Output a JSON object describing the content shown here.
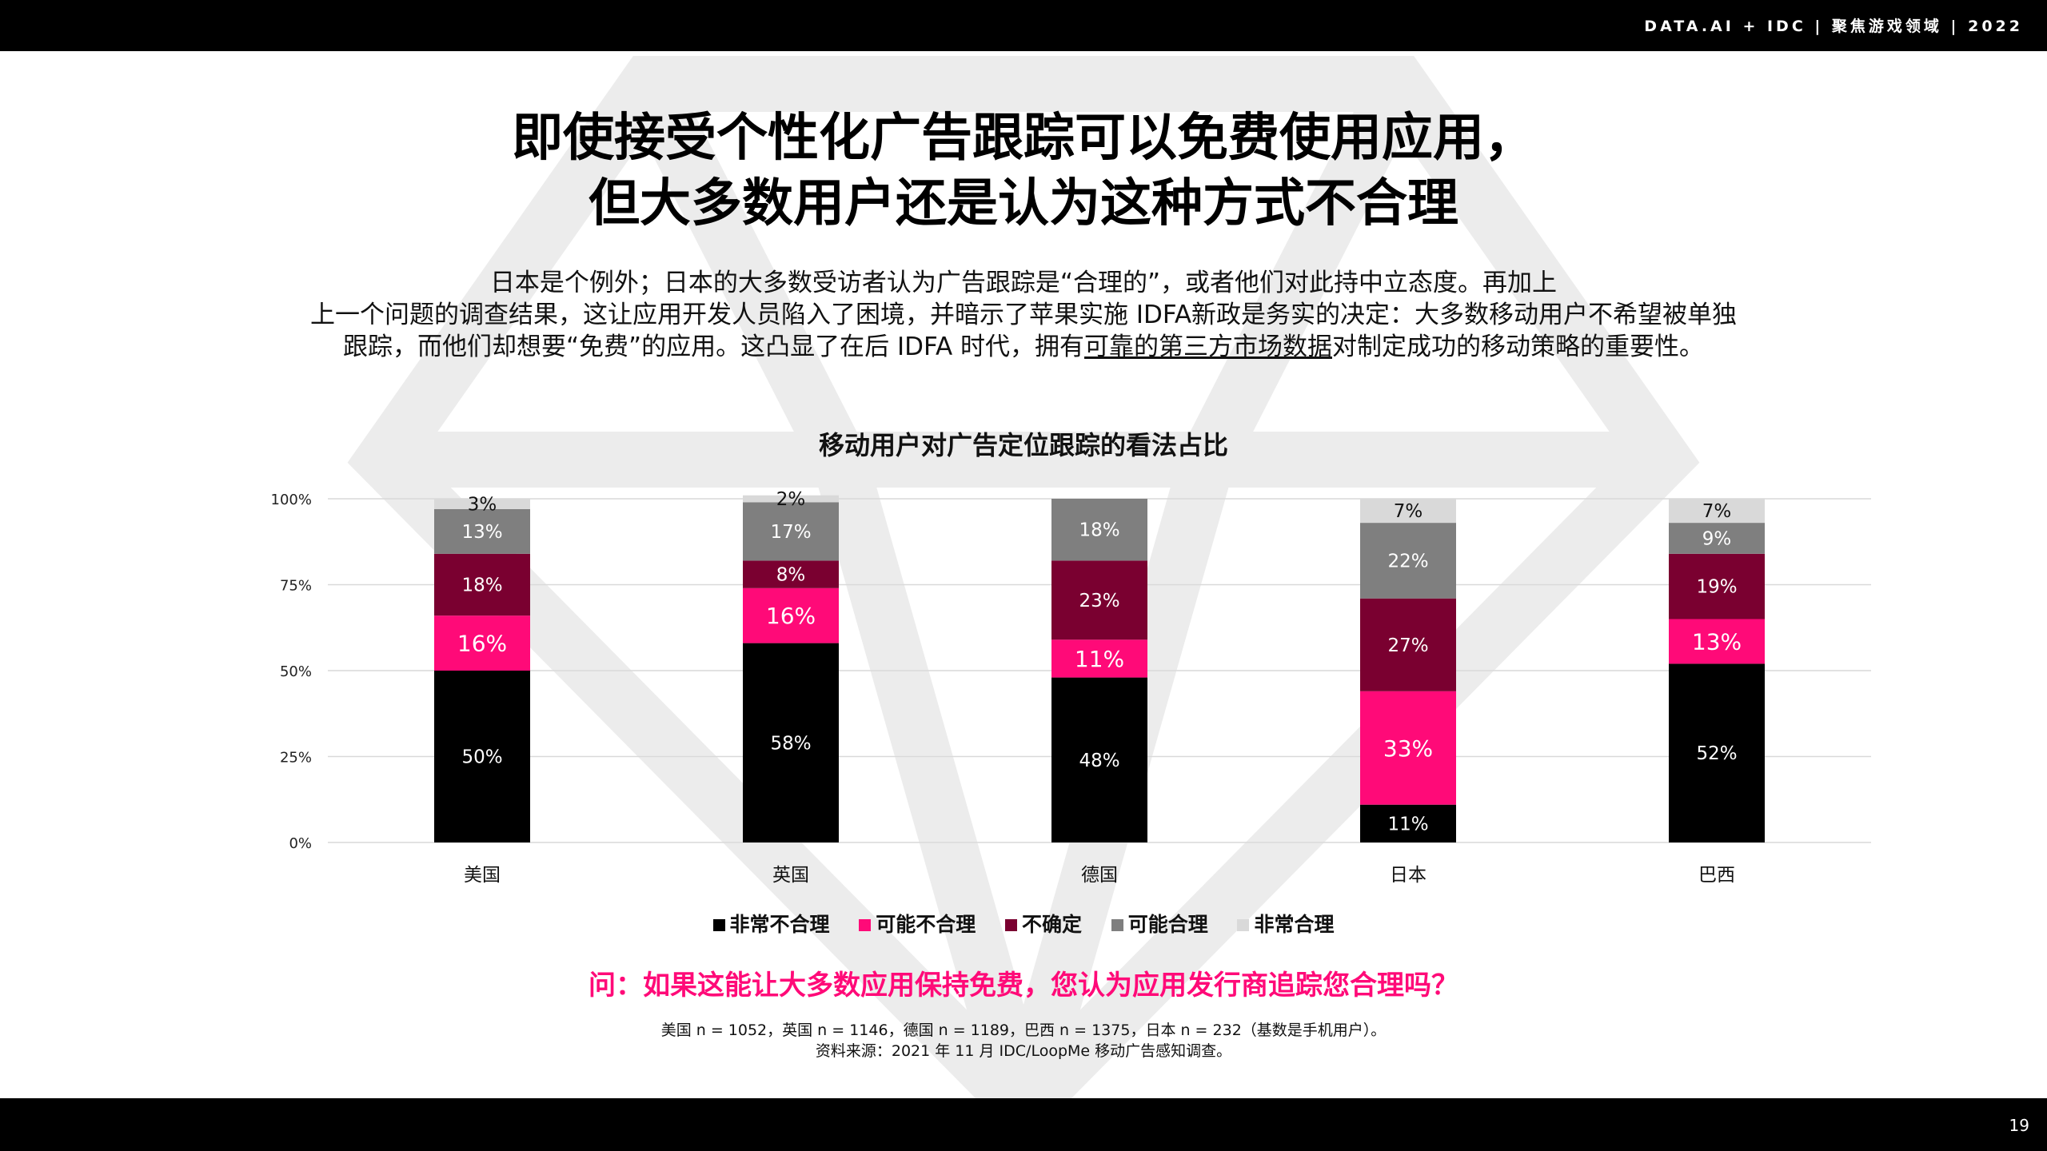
{
  "header": {
    "brand": "DATA.AI + IDC  |  聚焦游戏领域  | 2022"
  },
  "footer": {
    "page_number": "19"
  },
  "title": {
    "line1": "即使接受个性化广告跟踪可以免费使用应用，",
    "line2": "但大多数用户还是认为这种方式不合理"
  },
  "description": {
    "line1": "日本是个例外；日本的大多数受访者认为广告跟踪是“合理的”，或者他们对此持中立态度。再加上",
    "line2": "上一个问题的调查结果，这让应用开发人员陷入了困境，并暗示了苹果实施 IDFA新政是务实的决定：大多数移动用户不希望被单独",
    "line3_a": "跟踪，而他们却想要“免费”的应用。这凸显了在后 IDFA 时代，拥有",
    "line3_u": "可靠的第三方市场数据",
    "line3_b": "对制定成功的移动策略的重要性。"
  },
  "question": "问：如果这能让大多数应用保持免费，您认为应用发行商追踪您合理吗？",
  "notes": {
    "line1": "美国 n = 1052，英国 n = 1146，德国 n = 1189，巴西 n = 1375，日本 n = 232（基数是手机用户）。",
    "line2": "资料来源：2021 年 11 月 IDC/LoopMe 移动广告感知调查。"
  },
  "colors": {
    "very_unreasonable": "#000000",
    "maybe_unreasonable": "#ff0a78",
    "unsure": "#7a0030",
    "maybe_reasonable": "#7f7f7f",
    "very_reasonable": "#d9d9d9",
    "accent": "#ff0a78"
  },
  "chart_data": {
    "type": "bar",
    "stacked": true,
    "title": "移动用户对广告定位跟踪的看法占比",
    "categories": [
      "美国",
      "英国",
      "德国",
      "日本",
      "巴西"
    ],
    "yticks": [
      "0%",
      "25%",
      "50%",
      "75%",
      "100%"
    ],
    "ylim": [
      0,
      100
    ],
    "grid": true,
    "legend_position": "bottom",
    "series": [
      {
        "name": "非常不合理",
        "values": [
          50,
          58,
          48,
          11,
          52
        ]
      },
      {
        "name": "可能不合理",
        "values": [
          16,
          16,
          11,
          33,
          13
        ]
      },
      {
        "name": "不确定",
        "values": [
          18,
          8,
          23,
          27,
          19
        ]
      },
      {
        "name": "可能合理",
        "values": [
          13,
          17,
          18,
          22,
          9
        ]
      },
      {
        "name": "非常合理",
        "values": [
          3,
          2,
          0,
          7,
          7
        ]
      }
    ]
  }
}
